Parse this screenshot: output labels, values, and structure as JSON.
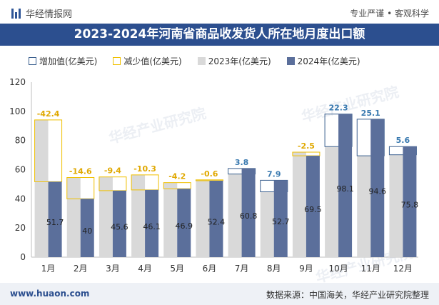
{
  "header": {
    "brand": "华经情报网",
    "tagline": "专业严谨 • 客观科学"
  },
  "title": "2023-2024年河南省商品收发货人所在地月度出口额",
  "legend": [
    {
      "key": "inc",
      "label": "增加值(亿美元)"
    },
    {
      "key": "dec",
      "label": "减少值(亿美元)"
    },
    {
      "key": "y23",
      "label": "2023年(亿美元)"
    },
    {
      "key": "y24",
      "label": "2024年(亿美元)"
    }
  ],
  "footer": {
    "url": "www.huaon.com",
    "source": "数据来源：中国海关，华经产业研究院整理"
  },
  "watermark": "华经产业研究院",
  "chart_data": {
    "type": "bar",
    "categories": [
      "1月",
      "2月",
      "3月",
      "4月",
      "5月",
      "6月",
      "7月",
      "8月",
      "9月",
      "10月",
      "11月",
      "12月"
    ],
    "series": [
      {
        "name": "2023年(亿美元)",
        "values": [
          94.1,
          54.6,
          55.0,
          56.4,
          51.1,
          53.0,
          57.0,
          44.8,
          72.0,
          75.8,
          69.5,
          70.2
        ]
      },
      {
        "name": "2024年(亿美元)",
        "values": [
          51.7,
          40,
          45.6,
          46.1,
          46.9,
          52.4,
          60.8,
          52.7,
          69.5,
          98.1,
          94.6,
          75.8
        ],
        "labels": [
          "51.7",
          "40",
          "45.6",
          "46.1",
          "46.9",
          "52.4",
          "60.8",
          "52.7",
          "69.5",
          "98.1",
          "94.6",
          "75.8"
        ]
      }
    ],
    "change": [
      -42.4,
      -14.6,
      -9.4,
      -10.3,
      -4.2,
      -0.6,
      3.8,
      7.9,
      -2.5,
      22.3,
      25.1,
      5.6
    ],
    "change_labels": [
      "-42.4",
      "-14.6",
      "-9.4",
      "-10.3",
      "-4.2",
      "-0.6",
      "3.8",
      "7.9",
      "-2.5",
      "22.3",
      "25.1",
      "5.6"
    ],
    "ylim": [
      0,
      120
    ],
    "yticks": [
      "0",
      "20",
      "40",
      "60",
      "80",
      "100",
      "120"
    ],
    "colors": {
      "y23": "#d9d9d9",
      "y24": "#5b6f9b",
      "inc": "#3a5f8e",
      "dec": "#f0c000",
      "incText": "#3a7ab0",
      "decText": "#e0a800"
    },
    "grid": false,
    "legend_position": "top"
  }
}
